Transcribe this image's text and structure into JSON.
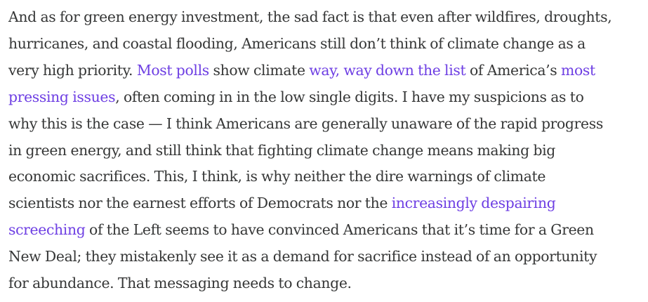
{
  "article": {
    "paragraph": {
      "lines": [
        [
          "And as for green energy investment, the sad fact is that even after wildfires, droughts,"
        ],
        [
          "hurricanes, and coastal flooding, Americans still don’t think of climate change as a"
        ],
        [
          "very high priority. ",
          "Most polls",
          " show climate ",
          "way, way down the list",
          " of America’s ",
          "most"
        ],
        [
          "pressing issues",
          ", often coming in in the low single digits. I have my suspicions as to"
        ],
        [
          "why this is the case — I think Americans are generally unaware of the rapid progress"
        ],
        [
          "in green energy, and still think that fighting climate change means making big"
        ],
        [
          "economic sacrifices. This, I think, is why neither the dire warnings of climate"
        ],
        [
          "scientists nor the earnest efforts of Democrats nor the ",
          "increasingly despairing"
        ],
        [
          "screeching",
          " of the Left seems to have convinced Americans that it’s time for a Green"
        ],
        [
          "New Deal; they mistakenly see it as a demand for sacrifice instead of an opportunity"
        ],
        [
          "for abundance. That messaging needs to change."
        ]
      ]
    },
    "colors": {
      "text": "#363737",
      "link": "#6e3fe3",
      "background": "#ffffff"
    }
  }
}
